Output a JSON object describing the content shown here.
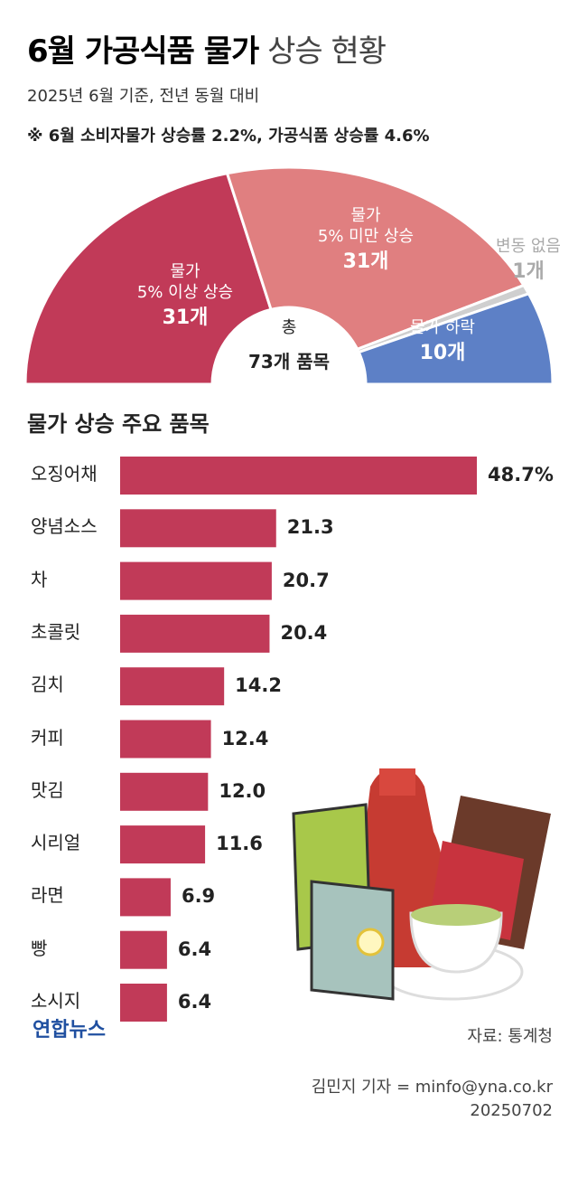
{
  "header": {
    "title_bold": "6월 가공식품 물가",
    "title_light": "상승 현황",
    "subtitle": "2025년 6월 기준, 전년 동월 대비",
    "note": "※ 6월 소비자물가 상승률 2.2%, 가공식품 상승률 4.6%"
  },
  "chart_data": [
    {
      "type": "pie",
      "categories": [
        "물가\n5% 이상 상승",
        "물가\n5% 미만 상승",
        "변동 없음",
        "물가 하락"
      ],
      "values": [
        31,
        31,
        1,
        10
      ],
      "value_labels": [
        "31개",
        "31개",
        "1개",
        "10개"
      ],
      "colors": [
        "#c13a58",
        "#e07f80",
        "#cfcfcf",
        "#5d80c6"
      ],
      "center_label": [
        "총",
        "73개 품목"
      ]
    },
    {
      "type": "bar",
      "title": "물가 상승 주요 품목",
      "categories": [
        "오징어채",
        "양념소스",
        "차",
        "초콜릿",
        "김치",
        "커피",
        "맛김",
        "시리얼",
        "라면",
        "빵",
        "소시지"
      ],
      "values": [
        48.7,
        21.3,
        20.7,
        20.4,
        14.2,
        12.4,
        12.0,
        11.6,
        6.9,
        6.4,
        6.4
      ],
      "value_labels": [
        "48.7%",
        "21.3",
        "20.7",
        "20.4",
        "14.2",
        "12.4",
        "12.0",
        "11.6",
        "6.9",
        "6.4",
        "6.4"
      ],
      "color": "#c13a58"
    }
  ],
  "footer": {
    "logo": "연합뉴스",
    "source": "자료: 통계청",
    "reporter": "김민지 기자 = minfo@yna.co.kr",
    "date": "20250702"
  }
}
